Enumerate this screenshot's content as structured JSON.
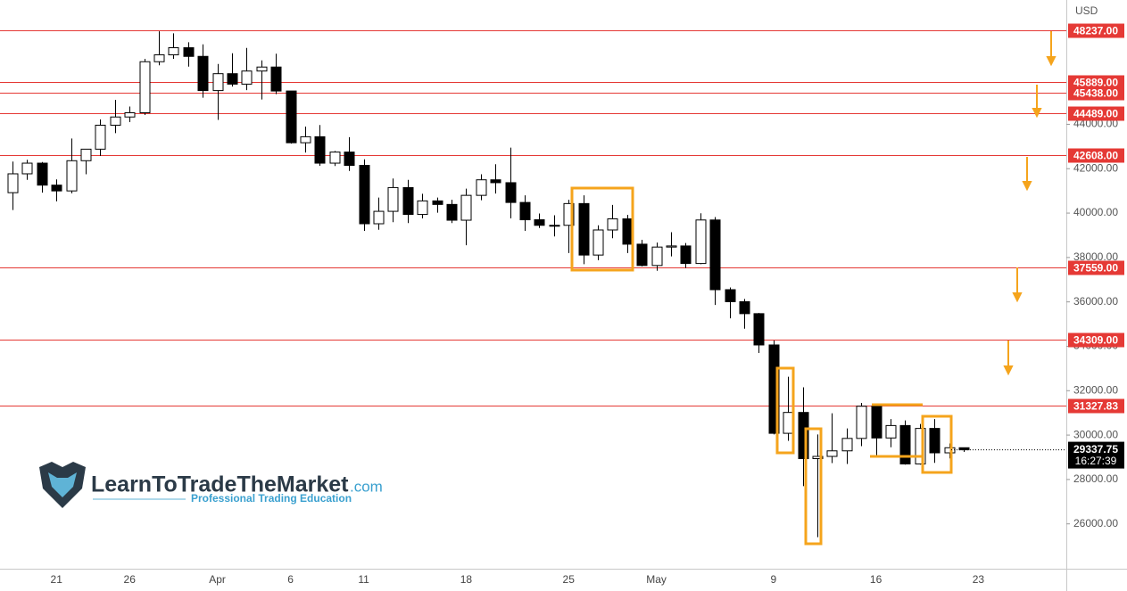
{
  "chart_data": {
    "type": "candlestick",
    "currency": "USD",
    "categories": [
      null,
      null,
      null,
      "21",
      null,
      null,
      null,
      null,
      "26",
      null,
      null,
      null,
      null,
      null,
      "Apr",
      null,
      null,
      null,
      null,
      "6",
      null,
      null,
      null,
      null,
      "11",
      null,
      null,
      null,
      null,
      null,
      null,
      "18",
      null,
      null,
      null,
      null,
      null,
      null,
      "25",
      null,
      null,
      null,
      null,
      null,
      "May",
      null,
      null,
      null,
      null,
      null,
      null,
      null,
      "9",
      null,
      null,
      null,
      null,
      null,
      null,
      "16",
      null,
      null,
      null,
      null,
      null,
      null,
      "23"
    ],
    "open": [
      40920,
      41770,
      42250,
      41260,
      41000,
      42360,
      42880,
      43960,
      44330,
      44520,
      46820,
      47130,
      47450,
      47060,
      45520,
      46280,
      45810,
      46400,
      46580,
      45500,
      43170,
      43440,
      42250,
      42750,
      42150,
      39520,
      40080,
      41150,
      39940,
      40550,
      40390,
      39680,
      40800,
      41500,
      41370,
      40480,
      39700,
      39450,
      39450,
      40430,
      38110,
      39240,
      39740,
      38600,
      37640,
      38470,
      38520,
      37730,
      39690,
      36550,
      36010,
      35470,
      34060,
      30080,
      31020,
      28940,
      29040,
      29290,
      29850,
      31300,
      29870,
      30430,
      28700,
      30300,
      29200,
      29430,
      null
    ],
    "high": [
      42320,
      42400,
      42300,
      41520,
      43360,
      42880,
      44220,
      45100,
      44800,
      46950,
      48190,
      48100,
      47700,
      47600,
      46720,
      47200,
      47440,
      46880,
      47180,
      45500,
      43900,
      43970,
      42800,
      43420,
      42420,
      40700,
      41560,
      41500,
      40870,
      40700,
      40600,
      41100,
      41750,
      42200,
      42950,
      40800,
      39980,
      39900,
      40600,
      40800,
      39450,
      40370,
      39920,
      38800,
      38670,
      39140,
      38650,
      39990,
      39820,
      36650,
      36130,
      35500,
      34260,
      32630,
      32150,
      30030,
      30980,
      30300,
      31450,
      31330,
      30720,
      30660,
      30500,
      30720,
      29620,
      29430,
      null
    ],
    "low": [
      40140,
      41500,
      40920,
      40530,
      40890,
      41750,
      42580,
      43600,
      44100,
      44420,
      46660,
      46950,
      46600,
      45200,
      44200,
      45700,
      45540,
      45120,
      45360,
      43130,
      42730,
      42130,
      42120,
      41900,
      39200,
      39250,
      39590,
      39550,
      39760,
      40020,
      39550,
      38550,
      40580,
      40880,
      39760,
      39200,
      39330,
      38950,
      38200,
      37700,
      37880,
      38870,
      38200,
      37600,
      37400,
      38050,
      37530,
      37700,
      35860,
      35260,
      34790,
      33700,
      30030,
      29740,
      27700,
      25400,
      28740,
      28700,
      29500,
      29100,
      29450,
      28670,
      28670,
      28750,
      28950,
      29240,
      null
    ],
    "close": [
      41770,
      42250,
      41260,
      41000,
      42360,
      42880,
      43960,
      44330,
      44520,
      46820,
      47130,
      47450,
      47060,
      45520,
      46280,
      45810,
      46400,
      46580,
      45500,
      43170,
      43440,
      42250,
      42750,
      42150,
      39520,
      40080,
      41150,
      39940,
      40550,
      40390,
      39680,
      40800,
      41500,
      41370,
      40480,
      39700,
      39450,
      39450,
      40430,
      38110,
      39240,
      39740,
      38600,
      37640,
      38470,
      38520,
      37730,
      39690,
      36550,
      36010,
      35470,
      34060,
      30080,
      31020,
      28940,
      29040,
      29290,
      29850,
      31300,
      29870,
      30430,
      28700,
      30300,
      29200,
      29430,
      29337.75,
      null
    ],
    "up_color": "#ffffff",
    "down_color": "#000000",
    "level_color": "#e53935",
    "ylim": [
      23980,
      49600
    ],
    "yticks": [
      {
        "value": 26000,
        "label": "26000.00"
      },
      {
        "value": 28000,
        "label": "28000.00"
      },
      {
        "value": 30000,
        "label": "30000.00"
      },
      {
        "value": 32000,
        "label": "32000.00"
      },
      {
        "value": 34000,
        "label": "34000.00"
      },
      {
        "value": 36000,
        "label": "36000.00"
      },
      {
        "value": 38000,
        "label": "38000.00"
      },
      {
        "value": 40000,
        "label": "40000.00"
      },
      {
        "value": 42000,
        "label": "42000.00"
      },
      {
        "value": 44000,
        "label": "44000.00"
      }
    ],
    "levels": [
      {
        "value": 48237,
        "label": "48237.00"
      },
      {
        "value": 45889,
        "label": "45889.00"
      },
      {
        "value": 45438,
        "label": "45438.00"
      },
      {
        "value": 44489,
        "label": "44489.00"
      },
      {
        "value": 42608,
        "label": "42608.00"
      },
      {
        "value": 37559,
        "label": "37559.00"
      },
      {
        "value": 34309,
        "label": "34309.00"
      },
      {
        "value": 31327.83,
        "label": "31327.83"
      }
    ],
    "last_price": {
      "value": 29337.75,
      "label": "29337.75"
    },
    "countdown": "16:27:39",
    "grid": false
  },
  "logo": {
    "name": "LearnToTradeTheMarket",
    "domain": ".com",
    "tagline": "Professional Trading Education"
  }
}
